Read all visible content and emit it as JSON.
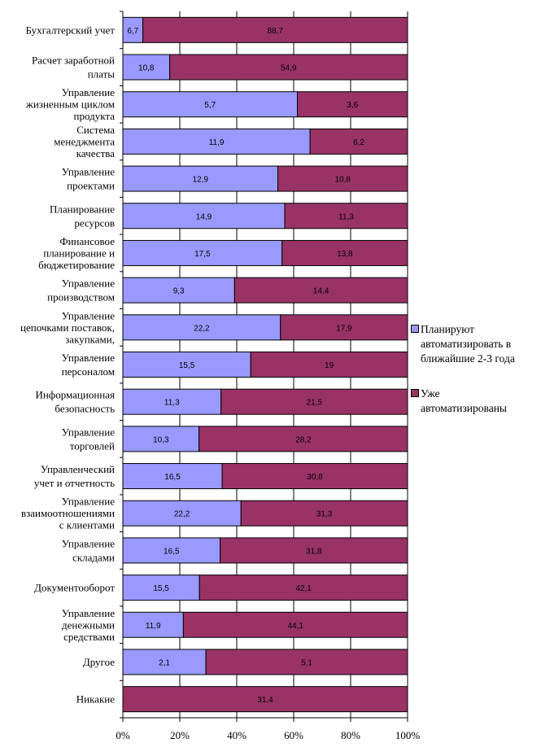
{
  "chart_data": {
    "type": "bar",
    "orientation": "horizontal",
    "stacked": "percent",
    "categories": [
      "Бухгалтерский учет",
      "Расчет заработной платы",
      "Управление жизненным циклом продукта",
      "Система менеджмента качества",
      "Управление проектами",
      "Планирование ресурсов",
      "Финансовое планирование и бюджетирование",
      "Управление производством",
      "Управление цепочками поставок, закупками,",
      "Управление персоналом",
      "Информационная безопасность",
      "Управление торговлей",
      "Управленческий учет и отчетность",
      "Управление взаимоотношениями с клиентами",
      "Управление складами",
      "Документооборот",
      "Управление денежными средствами",
      "Другое",
      "Никакие"
    ],
    "category_lines": [
      [
        "Бухгалтерский учет"
      ],
      [
        "Расчет заработной",
        "платы"
      ],
      [
        "Управление",
        "жизненным циклом",
        "продукта"
      ],
      [
        "Система",
        "менеджмента",
        "качества"
      ],
      [
        "Управление",
        "проектами"
      ],
      [
        "Планирование",
        "ресурсов"
      ],
      [
        "Финансовое",
        "планирование и",
        "бюджетирование"
      ],
      [
        "Управление",
        "производством"
      ],
      [
        "Управление",
        "цепочками поставок,",
        "закупками,"
      ],
      [
        "Управление",
        "персоналом"
      ],
      [
        "Информационная",
        "безопасность"
      ],
      [
        "Управление",
        "торговлей"
      ],
      [
        "Управленческий",
        "учет и отчетность"
      ],
      [
        "Управление",
        "взаимоотношениями",
        "с клиентами"
      ],
      [
        "Управление",
        "складами"
      ],
      [
        "Документооборот"
      ],
      [
        "Управление",
        "денежными",
        "средствами"
      ],
      [
        "Другое"
      ],
      [
        "Никакие"
      ]
    ],
    "series": [
      {
        "name": "Планируют автоматизировать в ближайшие 2-3 года",
        "color": "#9999FF",
        "values": [
          6.7,
          10.8,
          5.7,
          11.9,
          12.9,
          14.9,
          17.5,
          9.3,
          22.2,
          15.5,
          11.3,
          10.3,
          16.5,
          22.2,
          16.5,
          15.5,
          11.9,
          2.1,
          0
        ]
      },
      {
        "name": "Уже автоматизированы",
        "color": "#993366",
        "values": [
          88.7,
          54.9,
          3.6,
          6.2,
          10.8,
          11.3,
          13.8,
          14.4,
          17.9,
          19,
          21.5,
          28.2,
          30.8,
          31.3,
          31.8,
          42.1,
          44.1,
          5.1,
          31.4
        ]
      }
    ],
    "value_labels": [
      [
        "6,7",
        "88,7"
      ],
      [
        "10,8",
        "54,9"
      ],
      [
        "5,7",
        "3,6"
      ],
      [
        "11,9",
        "6,2"
      ],
      [
        "12,9",
        "10,8"
      ],
      [
        "14,9",
        "11,3"
      ],
      [
        "17,5",
        "13,8"
      ],
      [
        "9,3",
        "14,4"
      ],
      [
        "22,2",
        "17,9"
      ],
      [
        "15,5",
        "19"
      ],
      [
        "11,3",
        "21,5"
      ],
      [
        "10,3",
        "28,2"
      ],
      [
        "16,5",
        "30,8"
      ],
      [
        "22,2",
        "31,3"
      ],
      [
        "16,5",
        "31,8"
      ],
      [
        "15,5",
        "42,1"
      ],
      [
        "11,9",
        "44,1"
      ],
      [
        "2,1",
        "5,1"
      ],
      [
        "",
        "31,4"
      ]
    ],
    "xticks": [
      "0%",
      "20%",
      "40%",
      "60%",
      "80%",
      "100%"
    ],
    "xlim": [
      0,
      100
    ],
    "grid": true,
    "legend_position": "right",
    "legend": [
      "Планируют автоматизировать в ближайшие 2-3 года",
      "Уже автоматизированы"
    ],
    "legend_lines": [
      [
        "Планируют",
        "автоматизировать в",
        "ближайшие 2-3 года"
      ],
      [
        "Уже",
        "автоматизированы"
      ]
    ]
  }
}
